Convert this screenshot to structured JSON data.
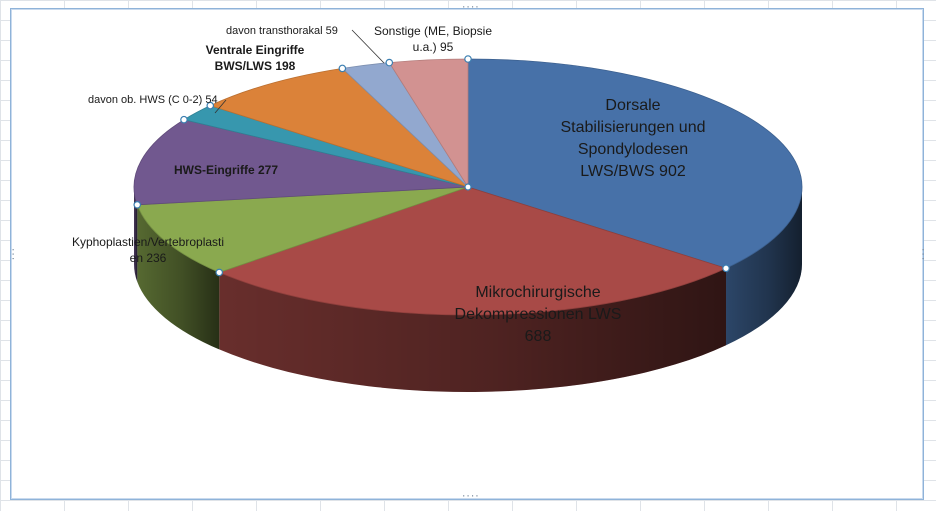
{
  "chart_data": {
    "type": "pie",
    "title": "",
    "slices": [
      {
        "label": "Dorsale Stabilisierungen und Spondylodesen LWS/BWS",
        "value": 902,
        "label_lines": [
          "Dorsale",
          "Stabilisierungen und",
          "Spondylodesen",
          "LWS/BWS 902"
        ],
        "color": "#4771a8",
        "label_weight": "normal"
      },
      {
        "label": "Mikrochirurgische Dekompressionen LWS",
        "value": 688,
        "label_lines": [
          "Mikrochirurgische",
          "Dekompressionen LWS",
          "688"
        ],
        "color": "#a84a47",
        "label_weight": "normal"
      },
      {
        "label": "Kyphoplastien/Vertebroplastien",
        "value": 236,
        "label_lines": [
          "Kyphoplastien/Vertebroplasti",
          "en 236"
        ],
        "color": "#8aa94f",
        "label_weight": "normal"
      },
      {
        "label": "HWS-Eingriffe",
        "value": 277,
        "label_lines": [
          "HWS-Eingriffe 277"
        ],
        "color": "#71588f",
        "label_weight": "bold"
      },
      {
        "label": "davon ob. HWS (C 0-2)",
        "value": 54,
        "label_lines": [
          "davon ob. HWS (C 0-2) 54"
        ],
        "color": "#3797ae",
        "label_weight": "normal"
      },
      {
        "label": "Ventrale Eingriffe BWS/LWS",
        "value": 198,
        "label_lines": [
          "Ventrale Eingriffe",
          "BWS/LWS 198"
        ],
        "color": "#db8239",
        "label_weight": "bold"
      },
      {
        "label": "davon transthorakal",
        "value": 59,
        "label_lines": [
          "davon transthorakal 59"
        ],
        "color": "#92a8cf",
        "label_weight": "normal"
      },
      {
        "label": "Sonstige (ME, Biopsie u.a.)",
        "value": 95,
        "label_lines": [
          "Sonstige (ME, Biopsie",
          "u.a.) 95"
        ],
        "color": "#d29291",
        "label_weight": "normal"
      }
    ],
    "start_angle_deg": -90,
    "direction": "clockwise",
    "style": "3d",
    "legend": "none"
  }
}
